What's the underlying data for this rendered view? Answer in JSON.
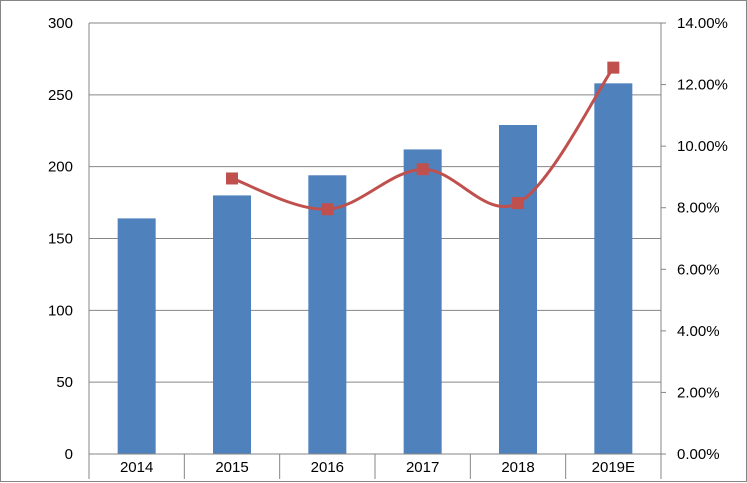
{
  "chart_data": {
    "type": "bar",
    "categories": [
      "2014",
      "2015",
      "2016",
      "2017",
      "2018",
      "2019E"
    ],
    "series": [
      {
        "type": "bar",
        "axis": "left",
        "values": [
          164,
          180,
          194,
          212,
          229,
          258
        ],
        "color": "#4F81BD"
      },
      {
        "type": "line",
        "axis": "right",
        "smooth": true,
        "marker": "square",
        "values": [
          null,
          8.95,
          7.95,
          9.25,
          8.15,
          12.55
        ],
        "color": "#C0504D"
      }
    ],
    "left_axis": {
      "ylim": [
        0,
        300
      ],
      "ticks": [
        "0",
        "50",
        "100",
        "150",
        "200",
        "250",
        "300"
      ]
    },
    "right_axis": {
      "ylim": [
        0,
        14
      ],
      "unit": "%",
      "ticks": [
        "0.00%",
        "2.00%",
        "4.00%",
        "6.00%",
        "8.00%",
        "10.00%",
        "12.00%",
        "14.00%"
      ]
    },
    "grid": true,
    "legend": "none",
    "title": "",
    "xlabel": "",
    "ylabel": ""
  }
}
